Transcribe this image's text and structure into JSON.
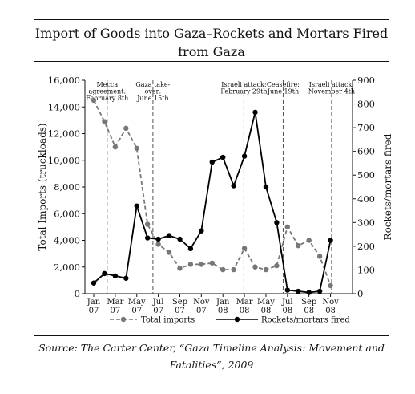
{
  "title": "Import of Goods into Gaza–Rockets and Mortars Fired from Gaza",
  "source": "Source: The Carter Center, “Gaza Timeline Analysis: Movement and Fatalities”, 2009",
  "chart_data": {
    "type": "line",
    "title": "Import of Goods into Gaza–Rockets and Mortars Fired from Gaza",
    "ylabel": "Total Imports (truckloads)",
    "y2label": "Rockets/mortars fired",
    "ylim": [
      0,
      16000
    ],
    "y2lim": [
      0,
      900
    ],
    "yticks": [
      "0",
      "2,000",
      "4,000",
      "6,000",
      "8,000",
      "10,000",
      "12,000",
      "14,000",
      "16,000"
    ],
    "y2ticks": [
      "0",
      "100",
      "200",
      "300",
      "400",
      "500",
      "600",
      "700",
      "800",
      "900"
    ],
    "xlim": [
      0,
      23
    ],
    "xticks": [
      {
        "month": 0,
        "label": [
          "Jan",
          "07"
        ]
      },
      {
        "month": 2,
        "label": [
          "Mar",
          "07"
        ]
      },
      {
        "month": 4,
        "label": [
          "May",
          "07"
        ]
      },
      {
        "month": 6,
        "label": [
          "Jul",
          "07"
        ]
      },
      {
        "month": 8,
        "label": [
          "Sep",
          "07"
        ]
      },
      {
        "month": 10,
        "label": [
          "Nov",
          "07"
        ]
      },
      {
        "month": 12,
        "label": [
          "Jan",
          "08"
        ]
      },
      {
        "month": 14,
        "label": [
          "Mar",
          "08"
        ]
      },
      {
        "month": 16,
        "label": [
          "May",
          "08"
        ]
      },
      {
        "month": 18,
        "label": [
          "Jul",
          "08"
        ]
      },
      {
        "month": 20,
        "label": [
          "Sep",
          "08"
        ]
      },
      {
        "month": 22,
        "label": [
          "Nov",
          "08"
        ]
      }
    ],
    "events": [
      {
        "month": 1.25,
        "label": [
          "Mecca",
          "agreement:",
          "February 8th"
        ]
      },
      {
        "month": 5.5,
        "label": [
          "Gaza take-",
          "over:",
          "June 15th"
        ]
      },
      {
        "month": 13.95,
        "label": [
          "Israeli attack:",
          "February 29th"
        ]
      },
      {
        "month": 17.6,
        "label": [
          "Ceasefire:",
          "June 19th"
        ]
      },
      {
        "month": 22.1,
        "label": [
          "Israeli attack:",
          "November 4th"
        ]
      }
    ],
    "series": [
      {
        "name": "Total imports",
        "axis": "left",
        "style": "dashed",
        "color": "#777777",
        "x": [
          0,
          1,
          2,
          3,
          4,
          5,
          6,
          7,
          8,
          9,
          10,
          11,
          12,
          13,
          14,
          15,
          16,
          17,
          18,
          19,
          20,
          21,
          22
        ],
        "values": [
          14500,
          12900,
          11000,
          12400,
          10900,
          5200,
          3700,
          3100,
          1900,
          2200,
          2200,
          2300,
          1800,
          1800,
          3400,
          2000,
          1800,
          2100,
          5000,
          3600,
          4000,
          2800,
          600
        ]
      },
      {
        "name": "Rockets/mortars fired",
        "axis": "right",
        "style": "solid",
        "color": "#000000",
        "x": [
          0,
          1,
          2,
          3,
          4,
          5,
          6,
          7,
          8,
          9,
          10,
          11,
          12,
          13,
          14,
          15,
          16,
          17,
          18,
          19,
          20,
          21,
          22
        ],
        "values": [
          45,
          85,
          75,
          65,
          370,
          235,
          230,
          245,
          230,
          190,
          265,
          555,
          575,
          455,
          580,
          765,
          450,
          300,
          15,
          10,
          5,
          10,
          225
        ]
      }
    ],
    "legend": {
      "position": "bottom",
      "entries": [
        "Total imports",
        "Rockets/mortars fired"
      ]
    }
  }
}
